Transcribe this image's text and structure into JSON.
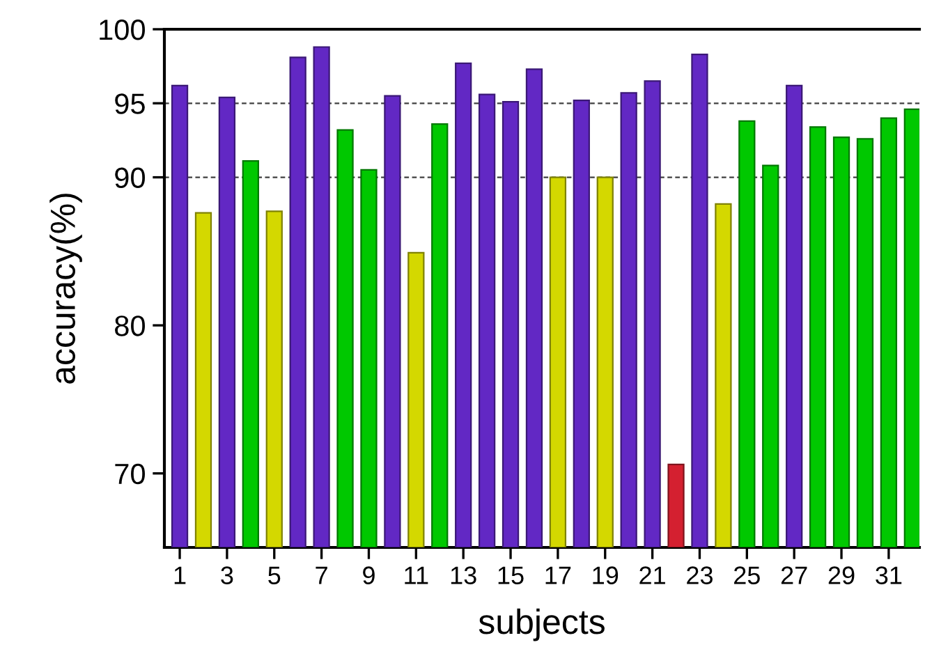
{
  "chart_data": {
    "type": "bar",
    "xlabel": "subjects",
    "ylabel": "accuracy(%)",
    "categories": [
      "1",
      null,
      "3",
      null,
      "5",
      null,
      "7",
      null,
      "9",
      null,
      "11",
      null,
      "13",
      null,
      "15",
      null,
      "17",
      null,
      "19",
      null,
      "21",
      null,
      "23",
      null,
      "25",
      null,
      "27",
      null,
      "29",
      null,
      "31",
      null
    ],
    "values": [
      96.2,
      87.6,
      95.4,
      91.1,
      87.7,
      98.1,
      98.8,
      93.2,
      90.5,
      95.5,
      84.9,
      93.6,
      97.7,
      95.6,
      95.1,
      97.3,
      90.0,
      95.2,
      90.0,
      95.7,
      96.5,
      70.6,
      98.3,
      88.2,
      93.8,
      90.8,
      96.2,
      93.4,
      92.7,
      92.6,
      94.0,
      94.6
    ],
    "colors": [
      "#6228c4",
      "#d4d800",
      "#6228c4",
      "#00c800",
      "#d4d800",
      "#6228c4",
      "#6228c4",
      "#00c800",
      "#00c800",
      "#6228c4",
      "#d4d800",
      "#00c800",
      "#6228c4",
      "#6228c4",
      "#6228c4",
      "#6228c4",
      "#d4d800",
      "#6228c4",
      "#d4d800",
      "#6228c4",
      "#6228c4",
      "#d42030",
      "#6228c4",
      "#d4d800",
      "#00c800",
      "#00c800",
      "#6228c4",
      "#00c800",
      "#00c800",
      "#00c800",
      "#00c800",
      "#00c800"
    ],
    "ylim": [
      65,
      100
    ],
    "yticks": [
      70,
      80,
      90,
      95,
      100
    ],
    "ref_lines": [
      {
        "axis": "y",
        "value": 90,
        "color": "#404040",
        "line_style": "dashed"
      },
      {
        "axis": "y",
        "value": 95,
        "color": "#404040",
        "line_style": "dashed"
      }
    ],
    "grid": false,
    "legend": false
  }
}
